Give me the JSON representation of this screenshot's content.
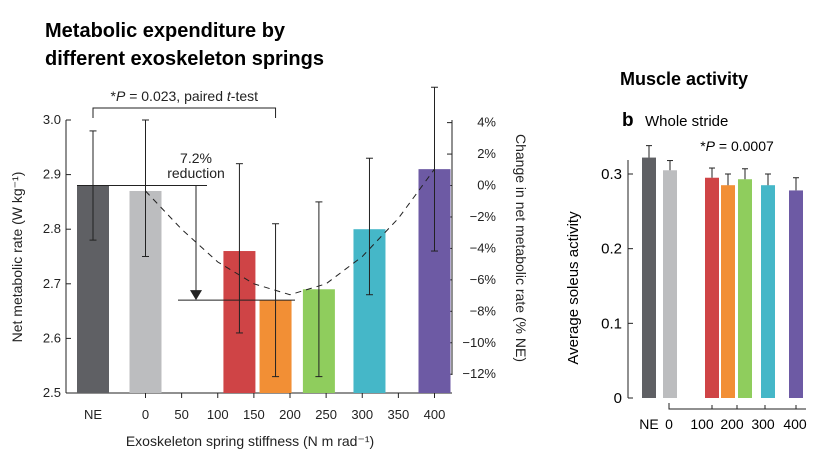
{
  "chart_data": [
    {
      "type": "bar",
      "title": "Metabolic expenditure by different exoskeleton springs",
      "title_lines": [
        "Metabolic expenditure by",
        "different exoskeleton springs"
      ],
      "xlabel": "Exoskeleton spring stiffness (N m rad⁻¹)",
      "ylabel": "Net metabolic rate (W kg⁻¹)",
      "y2label": "Change in net metabolic rate (% NE)",
      "ylim": [
        2.5,
        3.0
      ],
      "yticks": [
        "2.5",
        "2.6",
        "2.7",
        "2.8",
        "2.9",
        "3.0"
      ],
      "y2ticks": [
        "4%",
        "2%",
        "0%",
        "−2%",
        "−4%",
        "−6%",
        "−8%",
        "−10%",
        "−12%"
      ],
      "y2_values": [
        4,
        2,
        0,
        -2,
        -4,
        -6,
        -8,
        -10,
        -12
      ],
      "xticks": [
        "NE",
        "0",
        "50",
        "100",
        "150",
        "200",
        "250",
        "300",
        "350",
        "400"
      ],
      "xtick_values": [
        null,
        0,
        50,
        100,
        150,
        200,
        250,
        300,
        350,
        400
      ],
      "categories": [
        "NE",
        "0",
        "130",
        "180",
        "240",
        "310",
        "400"
      ],
      "bars": [
        {
          "label": "NE",
          "x": null,
          "value": 2.88,
          "err_low": 2.78,
          "err_high": 2.98,
          "color": "#5f6064"
        },
        {
          "label": "0",
          "x": 0,
          "value": 2.87,
          "err_low": 2.75,
          "err_high": 3.0,
          "color": "#bcbdbf"
        },
        {
          "label": "130",
          "x": 130,
          "value": 2.76,
          "err_low": 2.61,
          "err_high": 2.92,
          "color": "#cf4446"
        },
        {
          "label": "180",
          "x": 180,
          "value": 2.67,
          "err_low": 2.53,
          "err_high": 2.81,
          "color": "#f28f35"
        },
        {
          "label": "240",
          "x": 240,
          "value": 2.69,
          "err_low": 2.53,
          "err_high": 2.85,
          "color": "#8fcd5d"
        },
        {
          "label": "310",
          "x": 310,
          "value": 2.8,
          "err_low": 2.68,
          "err_high": 2.93,
          "color": "#45b7c8"
        },
        {
          "label": "400",
          "x": 400,
          "value": 2.91,
          "err_low": 2.76,
          "err_high": 3.06,
          "color": "#6d5aa4"
        }
      ],
      "fit_curve": {
        "x": [
          0,
          50,
          100,
          150,
          200,
          250,
          300,
          350,
          400
        ],
        "y": [
          2.87,
          2.8,
          2.74,
          2.7,
          2.68,
          2.7,
          2.75,
          2.82,
          2.91
        ]
      },
      "annotations": {
        "significance_prefix": "*",
        "significance_p": "P",
        "significance_mid": " = 0.023, paired ",
        "significance_t": "t",
        "significance_suffix": "-test",
        "reduction_pct": "7.2%",
        "reduction_word": "reduction"
      }
    },
    {
      "type": "bar",
      "title": "Muscle activity",
      "panel_letter": "b",
      "subtitle": "Whole stride",
      "ylabel": "Average soleus activity",
      "ylim": [
        0,
        0.35
      ],
      "yticks": [
        "0",
        "0.1",
        "0.2",
        "0.3"
      ],
      "ytick_values": [
        0,
        0.1,
        0.2,
        0.3
      ],
      "xticks": [
        "NE",
        "0",
        "100",
        "200",
        "300",
        "400"
      ],
      "categories": [
        "NE",
        "0",
        "100",
        "170",
        "240",
        "300",
        "400"
      ],
      "bars": [
        {
          "label": "NE",
          "value": 0.322,
          "err_high": 0.338,
          "color": "#5f6064"
        },
        {
          "label": "0",
          "value": 0.305,
          "err_high": 0.318,
          "color": "#bcbdbf"
        },
        {
          "label": "100",
          "value": 0.295,
          "err_high": 0.308,
          "color": "#cf4446"
        },
        {
          "label": "170",
          "value": 0.285,
          "err_high": 0.3,
          "color": "#f28f35"
        },
        {
          "label": "240",
          "value": 0.293,
          "err_high": 0.307,
          "color": "#8fcd5d"
        },
        {
          "label": "300",
          "value": 0.285,
          "err_high": 0.3,
          "color": "#45b7c8"
        },
        {
          "label": "400",
          "value": 0.278,
          "err_high": 0.295,
          "color": "#6d5aa4"
        }
      ],
      "annotations": {
        "significance_prefix": "*",
        "significance_p": "P",
        "significance_mid": " = 0.0007"
      }
    }
  ]
}
